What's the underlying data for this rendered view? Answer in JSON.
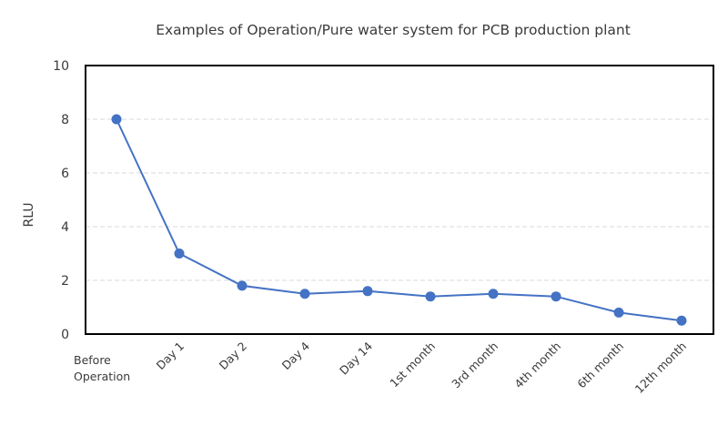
{
  "chart_data": {
    "type": "line",
    "title": "Examples of Operation/Pure water system for PCB production plant",
    "xlabel": "",
    "ylabel": "RLU",
    "ylim": [
      0,
      10
    ],
    "yticks": [
      "0",
      "2",
      "4",
      "6",
      "8",
      "10"
    ],
    "grid": true,
    "legend": "none",
    "categories": [
      [
        "Before",
        "Operation"
      ],
      [
        "Day 1"
      ],
      [
        "Day 2"
      ],
      [
        "Day 4"
      ],
      [
        "Day 14"
      ],
      [
        "1st month"
      ],
      [
        "3rd month"
      ],
      [
        "4th month"
      ],
      [
        "6th month"
      ],
      [
        "12th month"
      ]
    ],
    "series": [
      {
        "values": [
          8.0,
          3.0,
          1.8,
          1.5,
          1.6,
          1.4,
          1.5,
          1.4,
          0.8,
          0.5
        ],
        "color": "#4472c4"
      }
    ]
  }
}
